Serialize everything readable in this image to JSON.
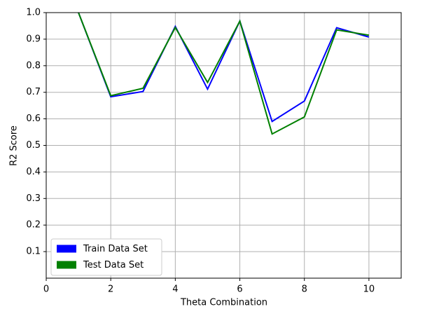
{
  "chart_data": {
    "type": "line",
    "x": [
      1,
      2,
      3,
      4,
      5,
      6,
      7,
      8,
      9,
      10
    ],
    "series": [
      {
        "name": "Train Data Set",
        "color": "#0000ff",
        "values": [
          1.0,
          0.683,
          0.703,
          0.948,
          0.712,
          0.968,
          0.59,
          0.667,
          0.943,
          0.908
        ]
      },
      {
        "name": "Test Data Set",
        "color": "#008000",
        "values": [
          1.0,
          0.687,
          0.715,
          0.944,
          0.737,
          0.968,
          0.543,
          0.607,
          0.935,
          0.915
        ]
      }
    ],
    "xlabel": "Theta Combination",
    "ylabel": "R2 Score",
    "xlim": [
      0,
      11
    ],
    "xticks": [
      0,
      2,
      4,
      6,
      8,
      10
    ],
    "ylim": [
      0,
      1
    ],
    "yticks": [
      0.1,
      0.2,
      0.3,
      0.4,
      0.5,
      0.6,
      0.7,
      0.8,
      0.9,
      {
        "value": 1,
        "label": "1.0"
      }
    ],
    "grid": true,
    "legend": "lower left"
  }
}
